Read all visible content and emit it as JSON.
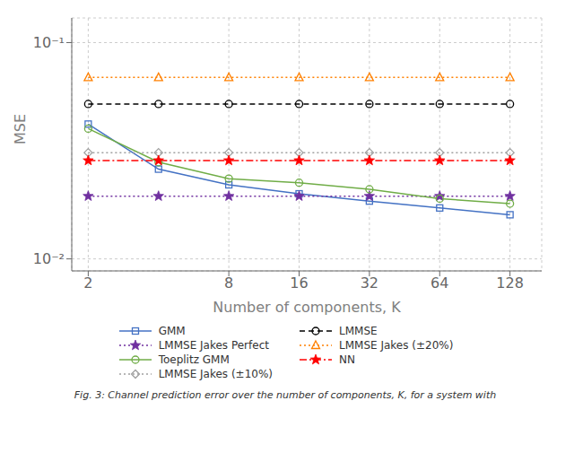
{
  "chart_data": {
    "type": "line",
    "x_label": "Number of components, K",
    "y_label": "MSE",
    "annotations": [
      "Fig. 3: Channel prediction error over the number of components, K, for a system with"
    ],
    "x": [
      2,
      4,
      8,
      16,
      32,
      64,
      128
    ],
    "series": [
      {
        "name": "GMM",
        "color": "#4472C4",
        "marker": "square",
        "line_style": "solid",
        "values": [
          0.042,
          0.026,
          0.022,
          0.02,
          0.0185,
          0.0172,
          0.016
        ]
      },
      {
        "name": "LMMSE Jakes Perfect",
        "color": "#7030A0",
        "marker": "star",
        "line_style": "dotted",
        "values": [
          0.0195,
          0.0195,
          0.0195,
          0.0195,
          0.0195,
          0.0195,
          0.0195
        ]
      },
      {
        "name": "Toeplitz GMM",
        "color": "#70AD47",
        "marker": "circle",
        "line_style": "solid",
        "values": [
          0.04,
          0.028,
          0.0235,
          0.0225,
          0.021,
          0.019,
          0.018
        ]
      },
      {
        "name": "LMMSE Jakes (±10%)",
        "color": "#A0A0A0",
        "marker": "diamond",
        "line_style": "dotted",
        "values": [
          0.031,
          0.031,
          0.031,
          0.031,
          0.031,
          0.031,
          0.031
        ]
      },
      {
        "name": "LMMSE",
        "color": "#000000",
        "marker": "circle",
        "line_style": "dashed",
        "values": [
          0.052,
          0.052,
          0.052,
          0.052,
          0.052,
          0.052,
          0.052
        ]
      },
      {
        "name": "LMMSE Jakes (±20%)",
        "color": "#FF8000",
        "marker": "triangle",
        "line_style": "dotted",
        "values": [
          0.069,
          0.069,
          0.069,
          0.069,
          0.069,
          0.069,
          0.069
        ]
      },
      {
        "name": "NN",
        "color": "#FF0000",
        "marker": "star",
        "line_style": "dashdot",
        "values": [
          0.0285,
          0.0285,
          0.0285,
          0.0285,
          0.0285,
          0.0285,
          0.0285
        ]
      }
    ],
    "xlim": [
      1.7,
      175
    ],
    "xticks": [
      2,
      8,
      16,
      32,
      64,
      128
    ],
    "ylim": [
      0.0088,
      0.13
    ],
    "yticks": [
      {
        "value": 0.01,
        "label": "10⁻²"
      },
      {
        "value": 0.1,
        "label": "10⁻¹"
      }
    ],
    "log": true,
    "grid": true,
    "legend": "bottom"
  }
}
